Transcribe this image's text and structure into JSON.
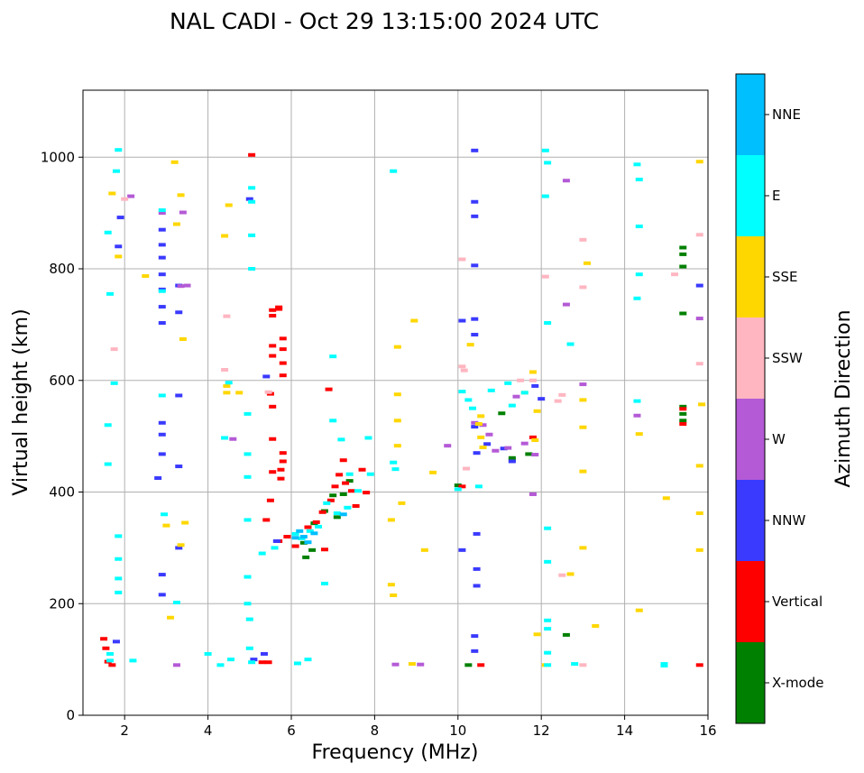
{
  "chart_data": {
    "type": "scatter",
    "title": "NAL CADI - Oct 29 13:15:00 2024 UTC",
    "xlabel": "Frequency (MHz)",
    "ylabel": "Virtual height (km)",
    "xlim": [
      1.0,
      16.0
    ],
    "ylim": [
      0,
      1120
    ],
    "xticks": [
      2,
      4,
      6,
      8,
      10,
      12,
      14,
      16
    ],
    "yticks": [
      0,
      200,
      400,
      600,
      800,
      1000
    ],
    "grid": true,
    "colorbar": {
      "title": "Azimuth Direction",
      "categories": [
        {
          "label": "X-mode",
          "color": "#008000"
        },
        {
          "label": "Vertical",
          "color": "#ff0000"
        },
        {
          "label": "NNW",
          "color": "#3a3aff"
        },
        {
          "label": "W",
          "color": "#b45ad6"
        },
        {
          "label": "SSW",
          "color": "#ffb6c1"
        },
        {
          "label": "SSE",
          "color": "#ffd700"
        },
        {
          "label": "E",
          "color": "#00ffff"
        },
        {
          "label": "NNE",
          "color": "#00bfff"
        }
      ]
    },
    "echoes": {
      "X-mode": [
        [
          6.35,
          283
        ],
        [
          6.5,
          296
        ],
        [
          7.1,
          355
        ],
        [
          7.25,
          396
        ],
        [
          7.4,
          420
        ],
        [
          10.0,
          412
        ],
        [
          10.25,
          90
        ],
        [
          11.05,
          541
        ],
        [
          11.3,
          461
        ],
        [
          11.3,
          457
        ],
        [
          11.7,
          468
        ],
        [
          12.6,
          144
        ],
        [
          15.4,
          838
        ],
        [
          15.4,
          826
        ],
        [
          15.4,
          804
        ],
        [
          15.4,
          720
        ],
        [
          15.4,
          553
        ],
        [
          15.4,
          540
        ],
        [
          15.4,
          528
        ],
        [
          6.3,
          309
        ],
        [
          6.55,
          344
        ],
        [
          6.8,
          366
        ],
        [
          7.0,
          394
        ]
      ],
      "Vertical": [
        [
          1.5,
          137
        ],
        [
          1.55,
          120
        ],
        [
          1.6,
          96
        ],
        [
          1.7,
          90
        ],
        [
          5.05,
          1004
        ],
        [
          5.55,
          726
        ],
        [
          5.55,
          716
        ],
        [
          5.7,
          731
        ],
        [
          5.7,
          728
        ],
        [
          5.8,
          675
        ],
        [
          5.8,
          656
        ],
        [
          5.8,
          631
        ],
        [
          5.8,
          609
        ],
        [
          5.55,
          662
        ],
        [
          5.55,
          644
        ],
        [
          5.5,
          576
        ],
        [
          5.55,
          553
        ],
        [
          5.55,
          495
        ],
        [
          5.55,
          436
        ],
        [
          5.75,
          440
        ],
        [
          5.75,
          424
        ],
        [
          5.8,
          470
        ],
        [
          5.8,
          455
        ],
        [
          5.3,
          95
        ],
        [
          5.4,
          350
        ],
        [
          5.5,
          385
        ],
        [
          5.7,
          312
        ],
        [
          5.9,
          320
        ],
        [
          6.1,
          303
        ],
        [
          6.4,
          337
        ],
        [
          6.6,
          346
        ],
        [
          6.75,
          364
        ],
        [
          6.95,
          385
        ],
        [
          7.05,
          410
        ],
        [
          7.15,
          431
        ],
        [
          7.25,
          457
        ],
        [
          7.3,
          416
        ],
        [
          7.45,
          402
        ],
        [
          7.55,
          375
        ],
        [
          7.7,
          440
        ],
        [
          7.8,
          399
        ],
        [
          6.9,
          584
        ],
        [
          10.1,
          410
        ],
        [
          10.55,
          90
        ],
        [
          11.8,
          498
        ],
        [
          15.4,
          549
        ],
        [
          15.4,
          522
        ],
        [
          15.8,
          90
        ],
        [
          5.45,
          95
        ],
        [
          6.8,
          297
        ]
      ],
      "NNW": [
        [
          1.85,
          840
        ],
        [
          1.9,
          892
        ],
        [
          2.9,
          870
        ],
        [
          2.9,
          843
        ],
        [
          2.9,
          820
        ],
        [
          2.9,
          790
        ],
        [
          2.9,
          763
        ],
        [
          2.9,
          732
        ],
        [
          2.9,
          703
        ],
        [
          3.3,
          770
        ],
        [
          3.3,
          722
        ],
        [
          3.3,
          573
        ],
        [
          3.3,
          446
        ],
        [
          3.3,
          300
        ],
        [
          2.8,
          425
        ],
        [
          2.9,
          468
        ],
        [
          2.9,
          503
        ],
        [
          2.9,
          524
        ],
        [
          2.9,
          252
        ],
        [
          2.9,
          216
        ],
        [
          5.0,
          925
        ],
        [
          5.4,
          607
        ],
        [
          5.1,
          100
        ],
        [
          5.35,
          110
        ],
        [
          5.65,
          312
        ],
        [
          10.4,
          1012
        ],
        [
          10.4,
          920
        ],
        [
          10.4,
          894
        ],
        [
          10.4,
          806
        ],
        [
          10.4,
          710
        ],
        [
          10.4,
          682
        ],
        [
          10.4,
          517
        ],
        [
          10.45,
          470
        ],
        [
          10.45,
          325
        ],
        [
          10.45,
          262
        ],
        [
          10.45,
          232
        ],
        [
          10.4,
          115
        ],
        [
          10.4,
          142
        ],
        [
          10.1,
          296
        ],
        [
          10.1,
          707
        ],
        [
          10.7,
          486
        ],
        [
          11.1,
          478
        ],
        [
          11.3,
          455
        ],
        [
          11.85,
          590
        ],
        [
          12.0,
          567
        ],
        [
          15.8,
          770
        ],
        [
          1.8,
          132
        ]
      ],
      "W": [
        [
          2.9,
          900
        ],
        [
          3.4,
          901
        ],
        [
          3.35,
          769
        ],
        [
          4.6,
          495
        ],
        [
          8.5,
          91
        ],
        [
          9.1,
          91
        ],
        [
          9.75,
          483
        ],
        [
          10.4,
          524
        ],
        [
          10.6,
          520
        ],
        [
          10.75,
          503
        ],
        [
          10.9,
          474
        ],
        [
          11.2,
          479
        ],
        [
          11.4,
          571
        ],
        [
          11.6,
          487
        ],
        [
          11.85,
          467
        ],
        [
          11.8,
          396
        ],
        [
          12.6,
          958
        ],
        [
          12.6,
          736
        ],
        [
          13.0,
          593
        ],
        [
          14.3,
          537
        ],
        [
          15.8,
          711
        ],
        [
          3.25,
          90
        ],
        [
          3.5,
          770
        ],
        [
          2.15,
          930
        ]
      ],
      "SSW": [
        [
          1.75,
          656
        ],
        [
          2.0,
          925
        ],
        [
          4.4,
          619
        ],
        [
          4.45,
          715
        ],
        [
          5.45,
          579
        ],
        [
          10.1,
          817
        ],
        [
          10.2,
          442
        ],
        [
          10.1,
          625
        ],
        [
          10.15,
          618
        ],
        [
          11.5,
          600
        ],
        [
          11.8,
          600
        ],
        [
          12.5,
          574
        ],
        [
          12.5,
          251
        ],
        [
          13.0,
          852
        ],
        [
          13.0,
          767
        ],
        [
          15.8,
          861
        ],
        [
          15.8,
          630
        ],
        [
          15.2,
          790
        ],
        [
          12.1,
          786
        ],
        [
          12.4,
          563
        ],
        [
          13.0,
          90
        ]
      ],
      "SSE": [
        [
          1.7,
          935
        ],
        [
          1.85,
          822
        ],
        [
          2.5,
          787
        ],
        [
          3.2,
          991
        ],
        [
          3.35,
          932
        ],
        [
          4.5,
          914
        ],
        [
          4.4,
          859
        ],
        [
          3.4,
          674
        ],
        [
          3.25,
          880
        ],
        [
          4.45,
          590
        ],
        [
          4.45,
          578
        ],
        [
          4.75,
          578
        ],
        [
          3.45,
          345
        ],
        [
          3.35,
          305
        ],
        [
          3.1,
          175
        ],
        [
          8.55,
          660
        ],
        [
          8.55,
          575
        ],
        [
          8.55,
          528
        ],
        [
          8.55,
          483
        ],
        [
          8.95,
          707
        ],
        [
          8.65,
          380
        ],
        [
          9.2,
          296
        ],
        [
          9.4,
          435
        ],
        [
          8.4,
          350
        ],
        [
          8.4,
          234
        ],
        [
          8.45,
          215
        ],
        [
          8.9,
          92
        ],
        [
          10.3,
          664
        ],
        [
          10.55,
          536
        ],
        [
          10.5,
          522
        ],
        [
          10.55,
          498
        ],
        [
          10.6,
          480
        ],
        [
          11.8,
          615
        ],
        [
          11.6,
          578
        ],
        [
          11.85,
          493
        ],
        [
          11.9,
          545
        ],
        [
          12.1,
          90
        ],
        [
          12.7,
          253
        ],
        [
          13.0,
          565
        ],
        [
          13.0,
          516
        ],
        [
          13.0,
          437
        ],
        [
          13.0,
          300
        ],
        [
          13.1,
          810
        ],
        [
          13.3,
          160
        ],
        [
          14.35,
          188
        ],
        [
          14.35,
          504
        ],
        [
          15.0,
          389
        ],
        [
          15.8,
          992
        ],
        [
          15.85,
          557
        ],
        [
          15.8,
          447
        ],
        [
          15.8,
          362
        ],
        [
          15.8,
          296
        ],
        [
          11.9,
          145
        ],
        [
          3.0,
          340
        ]
      ],
      "E": [
        [
          1.85,
          1013
        ],
        [
          1.8,
          975
        ],
        [
          1.6,
          865
        ],
        [
          1.65,
          755
        ],
        [
          1.75,
          595
        ],
        [
          1.6,
          520
        ],
        [
          1.6,
          450
        ],
        [
          1.85,
          321
        ],
        [
          1.85,
          280
        ],
        [
          1.85,
          245
        ],
        [
          1.85,
          220
        ],
        [
          1.65,
          110
        ],
        [
          1.65,
          98
        ],
        [
          2.2,
          98
        ],
        [
          2.9,
          760
        ],
        [
          2.9,
          905
        ],
        [
          2.9,
          573
        ],
        [
          2.95,
          360
        ],
        [
          3.25,
          202
        ],
        [
          4.0,
          110
        ],
        [
          4.3,
          90
        ],
        [
          4.55,
          100
        ],
        [
          4.4,
          497
        ],
        [
          4.5,
          596
        ],
        [
          5.05,
          945
        ],
        [
          5.05,
          920
        ],
        [
          5.05,
          860
        ],
        [
          5.05,
          800
        ],
        [
          4.95,
          540
        ],
        [
          4.95,
          468
        ],
        [
          4.95,
          427
        ],
        [
          4.95,
          350
        ],
        [
          4.95,
          248
        ],
        [
          4.95,
          200
        ],
        [
          5.0,
          172
        ],
        [
          5.0,
          120
        ],
        [
          5.05,
          95
        ],
        [
          5.3,
          290
        ],
        [
          5.6,
          300
        ],
        [
          6.1,
          325
        ],
        [
          6.25,
          317
        ],
        [
          6.45,
          330
        ],
        [
          6.65,
          338
        ],
        [
          6.85,
          380
        ],
        [
          7.0,
          528
        ],
        [
          7.1,
          362
        ],
        [
          7.2,
          494
        ],
        [
          7.4,
          432
        ],
        [
          7.6,
          402
        ],
        [
          7.85,
          497
        ],
        [
          8.45,
          975
        ],
        [
          8.45,
          453
        ],
        [
          8.5,
          441
        ],
        [
          6.15,
          93
        ],
        [
          7.0,
          643
        ],
        [
          10.0,
          405
        ],
        [
          10.1,
          580
        ],
        [
          10.25,
          565
        ],
        [
          10.35,
          550
        ],
        [
          10.5,
          410
        ],
        [
          10.8,
          582
        ],
        [
          11.2,
          595
        ],
        [
          11.3,
          555
        ],
        [
          11.6,
          578
        ],
        [
          12.1,
          1012
        ],
        [
          12.15,
          990
        ],
        [
          12.1,
          930
        ],
        [
          12.15,
          703
        ],
        [
          12.15,
          335
        ],
        [
          12.15,
          275
        ],
        [
          12.15,
          170
        ],
        [
          12.15,
          155
        ],
        [
          12.15,
          112
        ],
        [
          12.15,
          90
        ],
        [
          12.8,
          92
        ],
        [
          12.7,
          665
        ],
        [
          14.3,
          987
        ],
        [
          14.35,
          960
        ],
        [
          14.35,
          876
        ],
        [
          14.35,
          790
        ],
        [
          14.3,
          747
        ],
        [
          14.3,
          563
        ],
        [
          14.95,
          92
        ],
        [
          14.95,
          89
        ],
        [
          6.4,
          100
        ],
        [
          6.8,
          236
        ],
        [
          7.9,
          432
        ],
        [
          7.35,
          372
        ]
      ],
      "NNE": [
        [
          6.2,
          330
        ],
        [
          6.3,
          320
        ],
        [
          6.4,
          310
        ],
        [
          6.1,
          318
        ],
        [
          6.55,
          326
        ],
        [
          7.25,
          360
        ]
      ]
    }
  }
}
